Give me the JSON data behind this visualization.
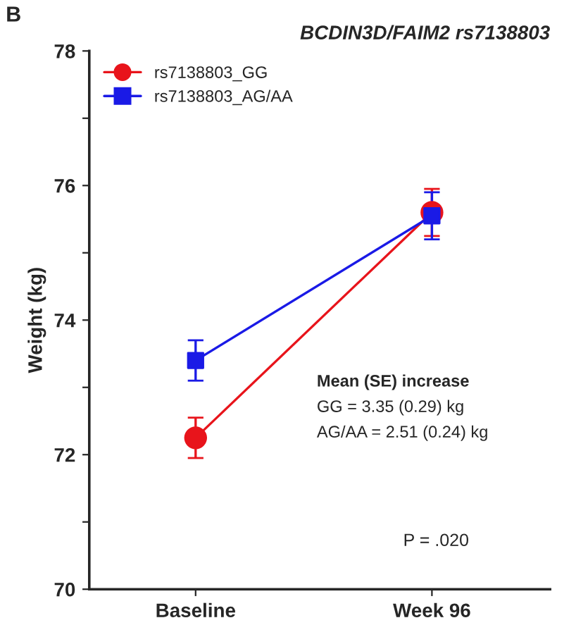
{
  "chart_data": {
    "type": "line",
    "title": "BCDIN3D/FAIM2 rs7138803",
    "ylabel": "Weight (kg)",
    "categories": [
      "Baseline",
      "Week 96"
    ],
    "series": [
      {
        "name": "rs7138803_GG",
        "color": "#e8141b",
        "marker": "circle",
        "values": [
          72.25,
          75.6
        ],
        "errors": [
          0.3,
          0.35
        ]
      },
      {
        "name": "rs7138803_AG/AA",
        "color": "#1a1ae6",
        "marker": "square",
        "values": [
          73.4,
          75.55
        ],
        "errors": [
          0.3,
          0.35
        ]
      }
    ],
    "ylim": [
      70,
      78
    ],
    "yticks": [
      70,
      {
        "value": 71,
        "label": null
      },
      72,
      {
        "value": 73,
        "label": null
      },
      74,
      {
        "value": 75,
        "label": null
      },
      76,
      {
        "value": 77,
        "label": null
      },
      78
    ],
    "legend": "top left",
    "grid": false,
    "annotations": [
      "B",
      "Mean (SE) increase",
      "GG = 3.35 (0.29) kg",
      "AG/AA = 2.51 (0.24) kg",
      "P = .020"
    ]
  }
}
